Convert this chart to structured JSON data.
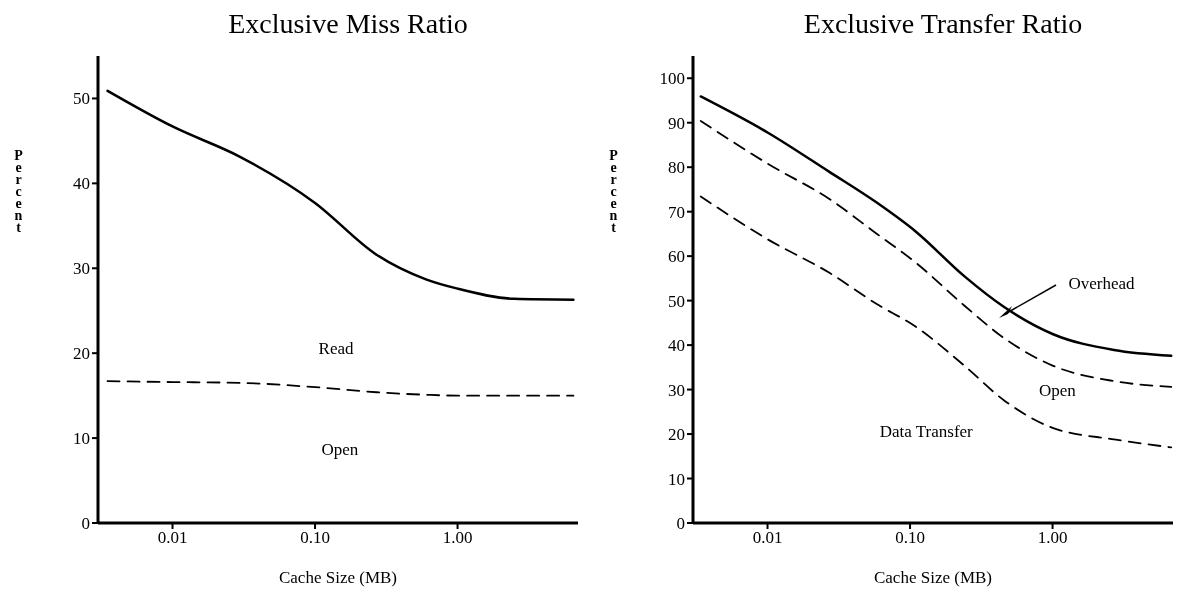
{
  "chart_data": [
    {
      "type": "line",
      "title": "Exclusive Miss Ratio",
      "xlabel": "Cache Size (MB)",
      "ylabel": "Percent",
      "log": "x",
      "grid": false,
      "legend": false,
      "marker": "none",
      "x": [
        0.0035,
        0.01,
        0.03,
        0.1,
        0.27,
        0.6,
        1,
        2.5,
        6.5
      ],
      "xlim": [
        0.003,
        7
      ],
      "xticks": [
        {
          "value": 0.01,
          "label": "0.01"
        },
        {
          "value": 0.1,
          "label": "0.10"
        },
        {
          "value": 1,
          "label": "1.00"
        }
      ],
      "ylim": [
        0,
        55
      ],
      "yticks": [
        0,
        10,
        20,
        30,
        40,
        50
      ],
      "series": [
        {
          "color": "#000000",
          "line_style": "solid",
          "values": [
            50.9,
            46.7,
            43.1,
            37.7,
            31.6,
            28.7,
            27.6,
            26.4,
            26.3
          ]
        },
        {
          "color": "#000000",
          "line_style": "dashed",
          "values": [
            16.7,
            16.6,
            16.5,
            16.0,
            15.4,
            15.1,
            15.0,
            15.0,
            15.0
          ]
        }
      ],
      "annotations": [
        "Read",
        "Open"
      ]
    },
    {
      "type": "line",
      "title": "Exclusive Transfer Ratio",
      "xlabel": "Cache Size (MB)",
      "ylabel": "Percent",
      "log": "x",
      "grid": false,
      "legend": false,
      "marker": "none",
      "x": [
        0.0034,
        0.01,
        0.027,
        0.058,
        0.11,
        0.24,
        0.46,
        1,
        2.7,
        6.8
      ],
      "xlim": [
        0.003,
        7
      ],
      "xticks": [
        {
          "value": 0.01,
          "label": "0.01"
        },
        {
          "value": 0.1,
          "label": "0.10"
        },
        {
          "value": 1,
          "label": "1.00"
        }
      ],
      "ylim": [
        0,
        105
      ],
      "yticks": [
        0,
        10,
        20,
        30,
        40,
        50,
        60,
        70,
        80,
        90,
        100
      ],
      "series": [
        {
          "color": "#000000",
          "line_style": "solid",
          "values": [
            95.9,
            87.8,
            79.0,
            72.1,
            65.5,
            55.5,
            48.5,
            42.5,
            38.9,
            37.6
          ]
        },
        {
          "color": "#000000",
          "line_style": "dashed",
          "values": [
            90.4,
            80.8,
            72.9,
            65.1,
            58.5,
            48.9,
            41.5,
            35.4,
            31.9,
            30.6
          ]
        },
        {
          "color": "#000000",
          "line_style": "dashed",
          "values": [
            73.4,
            63.8,
            56.3,
            49.3,
            44.1,
            35.4,
            27.5,
            21.4,
            18.8,
            17.0
          ]
        }
      ],
      "annotations": [
        "Overhead",
        "Open",
        "Data Transfer"
      ]
    }
  ]
}
